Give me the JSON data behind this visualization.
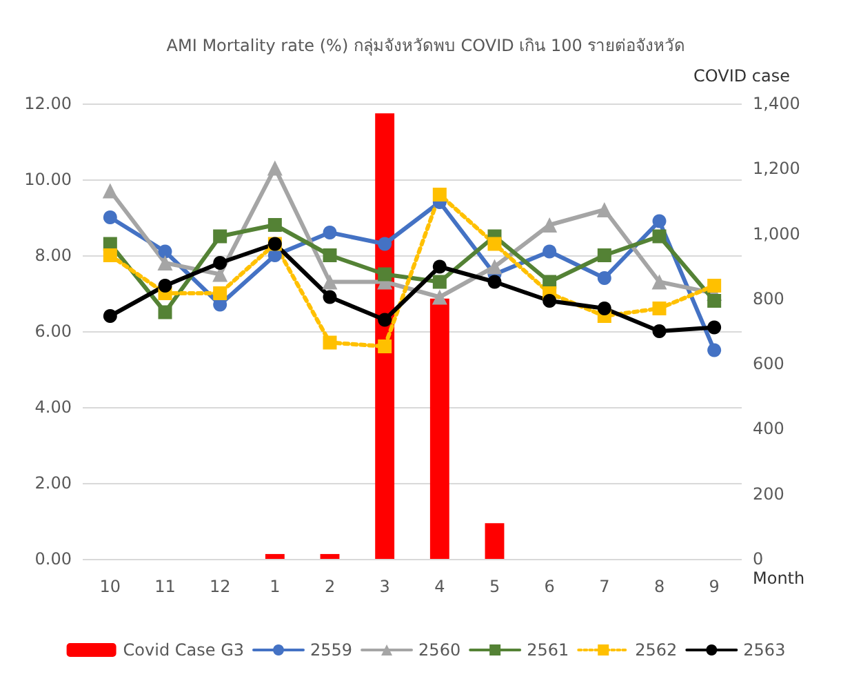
{
  "chart_data": {
    "type": "line",
    "title": "AMI Mortality rate (%) กลุ่มจังหวัดพบ COVID เกิน 100 รายต่อจังหวัด",
    "xlabel": "Month",
    "y2label": "COVID case",
    "categories": [
      "10",
      "11",
      "12",
      "1",
      "2",
      "3",
      "4",
      "5",
      "6",
      "7",
      "8",
      "9"
    ],
    "series": [
      {
        "name": "Covid Case G3",
        "type": "bar",
        "axis": "y2",
        "color": "#ff0000",
        "values": [
          null,
          null,
          null,
          15,
          15,
          1370,
          800,
          110,
          null,
          null,
          null,
          null
        ]
      },
      {
        "name": "2559",
        "color": "#4472c4",
        "marker": "circle",
        "values": [
          9.0,
          8.1,
          6.7,
          8.0,
          8.6,
          8.3,
          9.4,
          7.5,
          8.1,
          7.4,
          8.9,
          5.5
        ]
      },
      {
        "name": "2560",
        "color": "#a5a5a5",
        "marker": "triangle",
        "values": [
          9.7,
          7.8,
          7.5,
          10.3,
          7.3,
          7.3,
          6.9,
          7.7,
          8.8,
          9.2,
          7.3,
          7.0
        ]
      },
      {
        "name": "2561",
        "color": "#548235",
        "marker": "square",
        "values": [
          8.3,
          6.5,
          8.5,
          8.8,
          8.0,
          7.5,
          7.3,
          8.5,
          7.3,
          8.0,
          8.5,
          6.8
        ]
      },
      {
        "name": "2562",
        "color": "#ffc000",
        "marker": "square",
        "line_style": "dotted",
        "values": [
          8.0,
          7.0,
          7.0,
          8.3,
          5.7,
          5.6,
          9.6,
          8.3,
          7.0,
          6.4,
          6.6,
          7.2
        ]
      },
      {
        "name": "2563",
        "color": "#000000",
        "marker": "circle",
        "values": [
          6.4,
          7.2,
          7.8,
          8.3,
          6.9,
          6.3,
          7.7,
          7.3,
          6.8,
          6.6,
          6.0,
          6.1
        ]
      }
    ],
    "ylim": [
      0,
      12
    ],
    "yticks": [
      {
        "value": 0,
        "label": "0.00"
      },
      {
        "value": 2,
        "label": "2.00"
      },
      {
        "value": 4,
        "label": "4.00"
      },
      {
        "value": 6,
        "label": "6.00"
      },
      {
        "value": 8,
        "label": "8.00"
      },
      {
        "value": 10,
        "label": "10.00"
      },
      {
        "value": 12,
        "label": "12.00"
      }
    ],
    "y2lim": [
      0,
      1400
    ],
    "y2ticks": [
      0,
      200,
      400,
      600,
      800,
      {
        "value": 1000,
        "label": "1,000"
      },
      {
        "value": 1200,
        "label": "1,200"
      },
      {
        "value": 1400,
        "label": "1,400"
      }
    ],
    "grid": "y",
    "legend": "bottom"
  }
}
